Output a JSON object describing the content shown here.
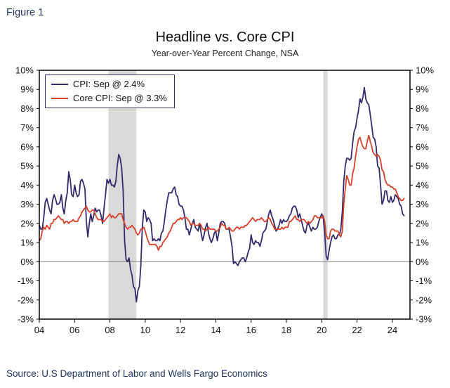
{
  "figure_label": "Figure 1",
  "source_text": "Source: U.S Department of Labor and Wells Fargo Economics",
  "chart_data": {
    "type": "line",
    "title": "Headline vs. Core CPI",
    "subtitle": "Year-over-Year Percent Change, NSA",
    "xlim": [
      2004,
      2025
    ],
    "ylim": [
      -3,
      10
    ],
    "x_start_year": 2004,
    "x_frequency": "monthly",
    "grid": false,
    "legend_position": "top-left",
    "zero_line": 0,
    "y_tick_values": [
      10,
      9,
      8,
      7,
      6,
      5,
      4,
      3,
      2,
      1,
      0,
      -1,
      -2,
      -3
    ],
    "y_tick_labels": [
      "10%",
      "9%",
      "8%",
      "7%",
      "6%",
      "5%",
      "4%",
      "3%",
      "2%",
      "1%",
      "0%",
      "-1%",
      "-2%",
      "-3%"
    ],
    "x_tick_values": [
      2004,
      2006,
      2008,
      2010,
      2012,
      2014,
      2016,
      2018,
      2020,
      2022,
      2024
    ],
    "x_tick_labels": [
      "04",
      "06",
      "08",
      "10",
      "12",
      "14",
      "16",
      "18",
      "20",
      "22",
      "24"
    ],
    "recession_bands": [
      [
        2007.917,
        2009.5
      ],
      [
        2020.083,
        2020.333
      ]
    ],
    "colors": {
      "cpi": "#312a6c",
      "core": "#d5402b",
      "recession": "#d9d9d9",
      "zero_line": "#808080",
      "axis": "#000000"
    },
    "series": [
      {
        "name": "CPI: Sep @ 2.4%",
        "color_key": "cpi",
        "values": [
          1.9,
          1.7,
          1.7,
          2.3,
          3.1,
          3.3,
          3.0,
          2.7,
          2.5,
          3.2,
          3.5,
          3.3,
          3.0,
          3.0,
          3.1,
          3.5,
          2.8,
          2.5,
          3.2,
          3.6,
          4.7,
          4.3,
          3.5,
          3.4,
          4.0,
          3.6,
          3.4,
          3.5,
          4.2,
          4.3,
          4.1,
          3.8,
          2.1,
          1.3,
          2.0,
          2.5,
          2.1,
          2.4,
          2.8,
          2.6,
          2.7,
          2.7,
          2.4,
          2.0,
          2.8,
          3.5,
          4.3,
          4.1,
          4.3,
          4.0,
          4.0,
          3.9,
          4.2,
          5.0,
          5.6,
          5.4,
          4.9,
          3.7,
          1.1,
          0.1,
          0.0,
          0.2,
          -0.4,
          -0.7,
          -1.3,
          -1.4,
          -2.1,
          -1.5,
          -1.3,
          -0.2,
          1.8,
          2.7,
          2.6,
          2.1,
          2.3,
          2.2,
          2.0,
          1.1,
          1.2,
          1.1,
          1.1,
          1.2,
          1.1,
          1.5,
          1.6,
          2.1,
          2.7,
          3.2,
          3.6,
          3.6,
          3.6,
          3.8,
          3.9,
          3.5,
          3.4,
          3.0,
          2.9,
          2.9,
          2.7,
          2.3,
          1.7,
          1.7,
          1.4,
          1.7,
          2.0,
          2.2,
          1.8,
          1.7,
          1.6,
          2.0,
          1.5,
          1.1,
          1.4,
          1.8,
          2.0,
          1.5,
          1.2,
          1.0,
          1.2,
          1.5,
          1.6,
          1.1,
          1.5,
          2.0,
          2.1,
          2.1,
          2.0,
          1.7,
          1.7,
          1.7,
          1.3,
          0.8,
          -0.1,
          0.0,
          -0.1,
          -0.2,
          0.0,
          0.1,
          0.2,
          0.2,
          0.0,
          0.2,
          0.5,
          0.7,
          1.4,
          1.0,
          0.9,
          1.1,
          1.0,
          1.0,
          0.8,
          1.1,
          1.5,
          1.6,
          1.7,
          2.1,
          2.5,
          2.7,
          2.4,
          2.2,
          1.9,
          1.6,
          1.7,
          1.9,
          2.2,
          2.0,
          2.2,
          2.1,
          2.1,
          2.2,
          2.4,
          2.5,
          2.8,
          2.9,
          2.9,
          2.7,
          2.3,
          2.5,
          2.2,
          1.9,
          1.6,
          1.5,
          1.9,
          2.0,
          1.8,
          1.6,
          1.8,
          1.7,
          1.7,
          1.8,
          2.1,
          2.3,
          2.5,
          2.3,
          1.5,
          0.3,
          0.1,
          0.6,
          1.0,
          1.3,
          1.4,
          1.2,
          1.2,
          1.4,
          1.4,
          1.7,
          2.6,
          4.2,
          5.0,
          5.4,
          5.4,
          5.3,
          5.4,
          6.2,
          6.8,
          7.0,
          7.5,
          7.9,
          8.5,
          8.3,
          8.6,
          9.1,
          8.5,
          8.3,
          8.2,
          7.7,
          7.1,
          6.5,
          6.4,
          6.0,
          5.0,
          4.9,
          4.0,
          3.0,
          3.2,
          3.7,
          3.7,
          3.2,
          3.1,
          3.4,
          3.1,
          3.2,
          3.5,
          3.4,
          3.3,
          3.0,
          2.9,
          2.5,
          2.4
        ]
      },
      {
        "name": "Core CPI: Sep @ 3.3%",
        "color_key": "core",
        "values": [
          1.1,
          1.2,
          1.6,
          1.8,
          1.7,
          1.9,
          1.8,
          1.7,
          2.0,
          2.0,
          2.2,
          2.2,
          2.3,
          2.4,
          2.3,
          2.2,
          2.2,
          2.0,
          2.1,
          2.1,
          2.0,
          2.1,
          2.1,
          2.2,
          2.1,
          2.1,
          2.1,
          2.3,
          2.4,
          2.6,
          2.7,
          2.8,
          2.9,
          2.7,
          2.6,
          2.6,
          2.7,
          2.7,
          2.5,
          2.3,
          2.2,
          2.2,
          2.2,
          2.1,
          2.1,
          2.2,
          2.3,
          2.4,
          2.5,
          2.3,
          2.4,
          2.3,
          2.3,
          2.4,
          2.5,
          2.5,
          2.5,
          2.2,
          2.0,
          1.8,
          1.7,
          1.8,
          1.8,
          1.9,
          1.8,
          1.7,
          1.5,
          1.4,
          1.5,
          1.7,
          1.7,
          1.8,
          1.6,
          1.3,
          1.1,
          0.9,
          0.9,
          0.9,
          0.9,
          0.9,
          0.8,
          0.6,
          0.8,
          0.8,
          1.0,
          1.1,
          1.2,
          1.3,
          1.5,
          1.6,
          1.8,
          2.0,
          2.0,
          2.1,
          2.2,
          2.2,
          2.3,
          2.2,
          2.3,
          2.3,
          2.3,
          2.2,
          2.1,
          1.9,
          2.0,
          2.0,
          1.9,
          1.9,
          1.9,
          2.0,
          1.9,
          1.7,
          1.7,
          1.6,
          1.7,
          1.8,
          1.7,
          1.7,
          1.7,
          1.7,
          1.6,
          1.6,
          1.7,
          1.8,
          2.0,
          1.9,
          1.9,
          1.7,
          1.7,
          1.8,
          1.7,
          1.6,
          1.6,
          1.7,
          1.8,
          1.8,
          1.7,
          1.8,
          1.8,
          1.8,
          1.9,
          1.9,
          2.0,
          2.1,
          2.2,
          2.3,
          2.2,
          2.1,
          2.2,
          2.2,
          2.2,
          2.3,
          2.2,
          2.1,
          2.1,
          2.2,
          2.3,
          2.2,
          2.0,
          1.9,
          1.7,
          1.7,
          1.7,
          1.7,
          1.7,
          1.8,
          1.7,
          1.8,
          1.8,
          1.8,
          2.1,
          2.1,
          2.2,
          2.3,
          2.4,
          2.2,
          2.2,
          2.1,
          2.2,
          2.2,
          2.2,
          2.1,
          2.0,
          2.1,
          2.0,
          2.1,
          2.2,
          2.4,
          2.4,
          2.3,
          2.3,
          2.3,
          2.3,
          2.4,
          2.1,
          1.4,
          1.2,
          1.2,
          1.6,
          1.7,
          1.7,
          1.6,
          1.6,
          1.6,
          1.4,
          1.3,
          1.6,
          3.0,
          3.8,
          4.5,
          4.3,
          4.0,
          4.0,
          4.6,
          4.9,
          5.5,
          6.0,
          6.4,
          6.5,
          6.2,
          6.0,
          5.9,
          5.9,
          6.3,
          6.6,
          6.3,
          6.0,
          5.7,
          5.6,
          5.5,
          5.6,
          5.5,
          5.3,
          4.8,
          4.7,
          4.3,
          4.1,
          4.0,
          4.0,
          3.9,
          3.9,
          3.8,
          3.8,
          3.6,
          3.4,
          3.3,
          3.2,
          3.2,
          3.3
        ]
      }
    ]
  }
}
